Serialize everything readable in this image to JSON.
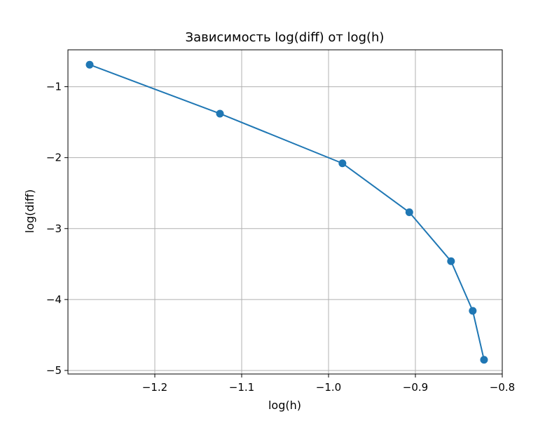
{
  "chart_data": {
    "type": "line",
    "title": "Зависимость log(diff) от log(h)",
    "xlabel": "log(h)",
    "ylabel": "log(diff)",
    "xlim": [
      -1.3,
      -0.8
    ],
    "ylim": [
      -5.05,
      -0.48
    ],
    "xticks": [
      {
        "value": -1.2,
        "label": "−1.2"
      },
      {
        "value": -1.1,
        "label": "−1.1"
      },
      {
        "value": -1.0,
        "label": "−1.0"
      },
      {
        "value": -0.9,
        "label": "−0.9"
      },
      {
        "value": -0.8,
        "label": "−0.8"
      }
    ],
    "yticks": [
      {
        "value": -1,
        "label": "−1"
      },
      {
        "value": -2,
        "label": "−2"
      },
      {
        "value": -3,
        "label": "−3"
      },
      {
        "value": -4,
        "label": "−4"
      },
      {
        "value": -5,
        "label": "−5"
      }
    ],
    "grid": true,
    "series": [
      {
        "color": "#1f77b4",
        "marker": "circle",
        "points": [
          {
            "x": -1.275,
            "y": -0.69
          },
          {
            "x": -1.125,
            "y": -1.38
          },
          {
            "x": -0.984,
            "y": -2.08
          },
          {
            "x": -0.907,
            "y": -2.77
          },
          {
            "x": -0.859,
            "y": -3.46
          },
          {
            "x": -0.834,
            "y": -4.16
          },
          {
            "x": -0.821,
            "y": -4.85
          }
        ]
      }
    ]
  }
}
